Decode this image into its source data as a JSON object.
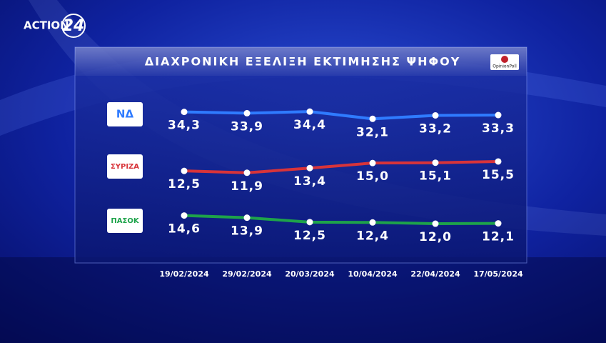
{
  "channel": {
    "name": "ACTION",
    "number": "24"
  },
  "chart_data": {
    "type": "line",
    "title": "ΔΙΑΧΡΟΝΙΚΗ ΕΞΕΛΙΞΗ ΕΚΤΙΜΗΣΗΣ ΨΗΦΟΥ",
    "source": "OpinionPoll",
    "categories": [
      "19/02/2024",
      "29/02/2024",
      "20/03/2024",
      "10/04/2024",
      "22/04/2024",
      "17/05/2024"
    ],
    "series": [
      {
        "name": "ΝΔ",
        "color": "#2f7bff",
        "values": [
          34.3,
          33.9,
          34.4,
          32.1,
          33.2,
          33.3
        ],
        "value_labels": [
          "34,3",
          "33,9",
          "34,4",
          "32,1",
          "33,2",
          "33,3"
        ]
      },
      {
        "name": "ΣΥΡΙΖΑ",
        "color": "#d8343a",
        "values": [
          12.5,
          11.9,
          13.4,
          15.0,
          15.1,
          15.5
        ],
        "value_labels": [
          "12,5",
          "11,9",
          "13,4",
          "15,0",
          "15,1",
          "15,5"
        ]
      },
      {
        "name": "ΠΑΣΟΚ",
        "color": "#1ea34a",
        "values": [
          14.6,
          13.9,
          12.5,
          12.4,
          12.0,
          12.1
        ],
        "value_labels": [
          "14,6",
          "13,9",
          "12,5",
          "12,4",
          "12,0",
          "12,1"
        ]
      }
    ]
  }
}
